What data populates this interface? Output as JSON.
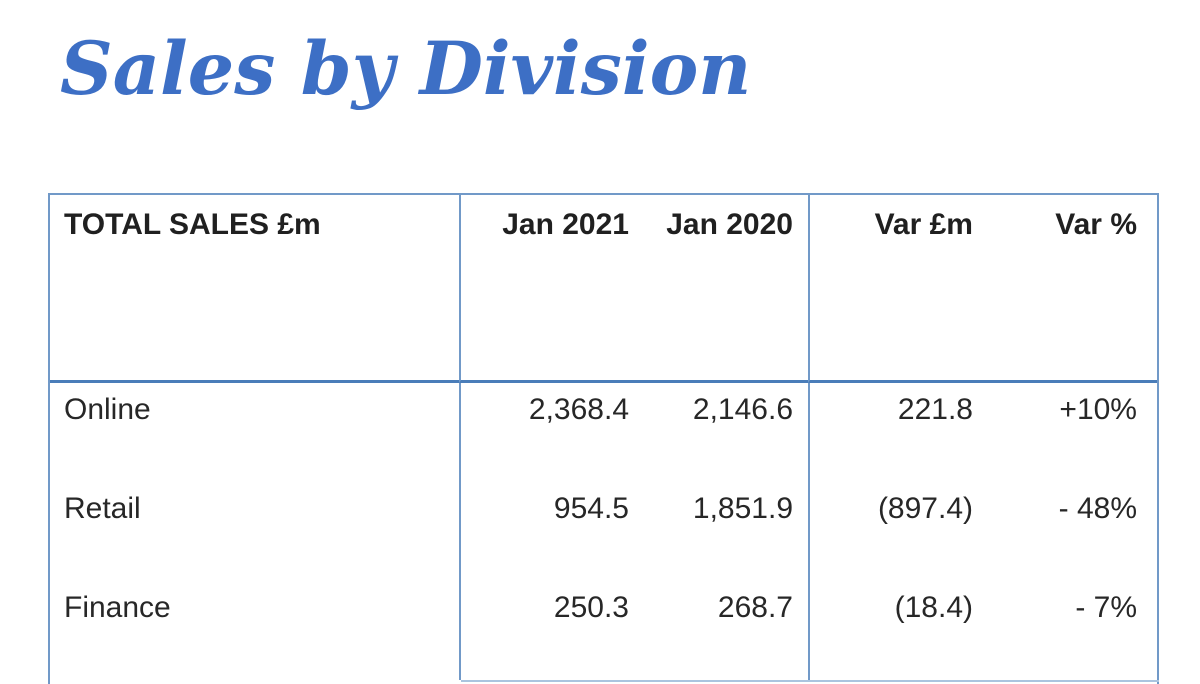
{
  "page": {
    "title": "Sales by Division",
    "title_color": "#3d6fc5"
  },
  "table": {
    "border_color": "#7199c8",
    "header_underline_color": "#4a7db9",
    "columns": {
      "label": "TOTAL SALES £m",
      "jan_2021": "Jan 2021",
      "jan_2020": "Jan 2020",
      "var_gbp": "Var £m",
      "var_pct": "Var %"
    },
    "rows": [
      {
        "division": "Online",
        "jan_2021": "2,368.4",
        "jan_2020": "2,146.6",
        "var_gbp": "221.8",
        "var_pct": "+10%"
      },
      {
        "division": "Retail",
        "jan_2021": "954.5",
        "jan_2020": "1,851.9",
        "var_gbp": "(897.4)",
        "var_pct": "- 48%"
      },
      {
        "division": "Finance",
        "jan_2021": "250.3",
        "jan_2020": "268.7",
        "var_gbp": "(18.4)",
        "var_pct": "- 7%"
      }
    ]
  }
}
